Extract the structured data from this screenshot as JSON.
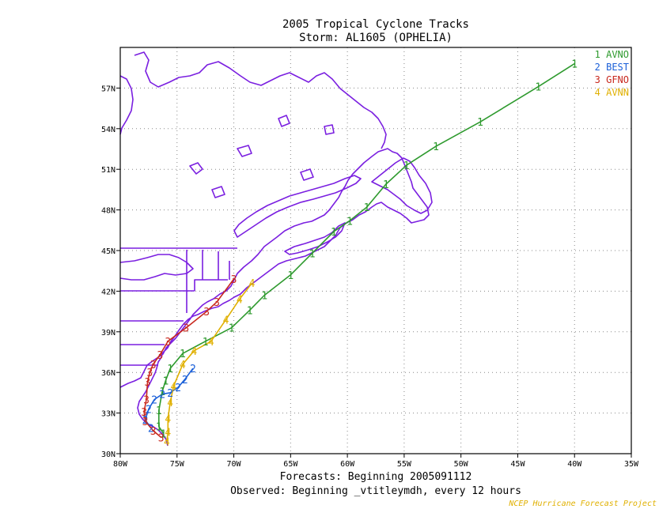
{
  "title_line1": "2005 Tropical Cyclone Tracks",
  "title_line2": "Storm: AL1605 (OPHELIA)",
  "footer_forecasts": "Forecasts: Beginning 2005091112",
  "footer_observed": "Observed: Beginning _vtitleymdh, every 12 hours",
  "credit": "NCEP Hurricane Forecast Project",
  "colors": {
    "coast": "#7a1fe0",
    "avno": "#2e9a2e",
    "best": "#1a5fd8",
    "gfno": "#c8281e",
    "avnn": "#e0b000",
    "credit": "#e0b000"
  },
  "chart_data": {
    "type": "line",
    "title": "2005 Tropical Cyclone Tracks",
    "subtitle": "Storm: AL1605 (OPHELIA)",
    "xlabel": "",
    "ylabel": "",
    "xlim": [
      -80,
      -35
    ],
    "ylim": [
      30,
      60
    ],
    "grid": true,
    "legend_position": "top-right",
    "x_ticks": [
      -80,
      -75,
      -70,
      -65,
      -60,
      -55,
      -50,
      -45,
      -40,
      -35
    ],
    "x_tick_labels": [
      "80W",
      "75W",
      "70W",
      "65W",
      "60W",
      "55W",
      "50W",
      "45W",
      "40W",
      "35W"
    ],
    "y_ticks": [
      30,
      33,
      36,
      39,
      42,
      45,
      48,
      51,
      54,
      57
    ],
    "y_tick_labels": [
      "30N",
      "33N",
      "36N",
      "39N",
      "42N",
      "45N",
      "48N",
      "51N",
      "54N",
      "57N"
    ],
    "series": [
      {
        "name": "AVNO",
        "marker": "1",
        "color": "#2e9a2e",
        "points": [
          [
            -76.2,
            31.5
          ],
          [
            -76.6,
            32.0
          ],
          [
            -76.6,
            33.2
          ],
          [
            -76.3,
            34.6
          ],
          [
            -76.0,
            35.4
          ],
          [
            -75.6,
            36.3
          ],
          [
            -74.5,
            37.4
          ],
          [
            -72.5,
            38.3
          ],
          [
            -70.2,
            39.3
          ],
          [
            -68.6,
            40.6
          ],
          [
            -67.3,
            41.7
          ],
          [
            -65.0,
            43.2
          ],
          [
            -63.1,
            44.8
          ],
          [
            -61.2,
            46.4
          ],
          [
            -59.8,
            47.2
          ],
          [
            -58.3,
            48.2
          ],
          [
            -56.6,
            49.9
          ],
          [
            -54.8,
            51.3
          ],
          [
            -52.2,
            52.7
          ],
          [
            -48.3,
            54.5
          ],
          [
            -43.2,
            57.1
          ],
          [
            -40.0,
            58.8
          ]
        ]
      },
      {
        "name": "BEST",
        "marker": "2",
        "color": "#1a5fd8",
        "points": [
          [
            -77.3,
            31.9
          ],
          [
            -77.8,
            32.5
          ],
          [
            -77.5,
            33.3
          ],
          [
            -77.0,
            34.0
          ],
          [
            -76.3,
            34.4
          ],
          [
            -75.6,
            34.5
          ],
          [
            -74.9,
            34.9
          ],
          [
            -74.3,
            35.5
          ],
          [
            -73.6,
            36.3
          ]
        ]
      },
      {
        "name": "GFNO",
        "marker": "3",
        "color": "#c8281e",
        "points": [
          [
            -76.4,
            31.2
          ],
          [
            -77.1,
            31.7
          ],
          [
            -77.8,
            32.4
          ],
          [
            -77.9,
            33.1
          ],
          [
            -77.7,
            34.0
          ],
          [
            -77.6,
            35.3
          ],
          [
            -77.4,
            36.0
          ],
          [
            -77.1,
            36.6
          ],
          [
            -76.5,
            37.3
          ],
          [
            -75.8,
            38.3
          ],
          [
            -74.2,
            39.3
          ],
          [
            -72.4,
            40.5
          ],
          [
            -71.5,
            41.2
          ],
          [
            -70.0,
            42.9
          ]
        ]
      },
      {
        "name": "AVNN",
        "marker": "4",
        "color": "#e0b000",
        "points": [
          [
            -75.9,
            30.9
          ],
          [
            -75.8,
            31.6
          ],
          [
            -75.8,
            32.6
          ],
          [
            -75.6,
            33.8
          ],
          [
            -75.3,
            35.0
          ],
          [
            -74.5,
            36.6
          ],
          [
            -73.5,
            37.6
          ],
          [
            -72.0,
            38.3
          ],
          [
            -70.7,
            39.9
          ],
          [
            -69.5,
            41.4
          ],
          [
            -68.4,
            42.6
          ]
        ]
      }
    ]
  }
}
